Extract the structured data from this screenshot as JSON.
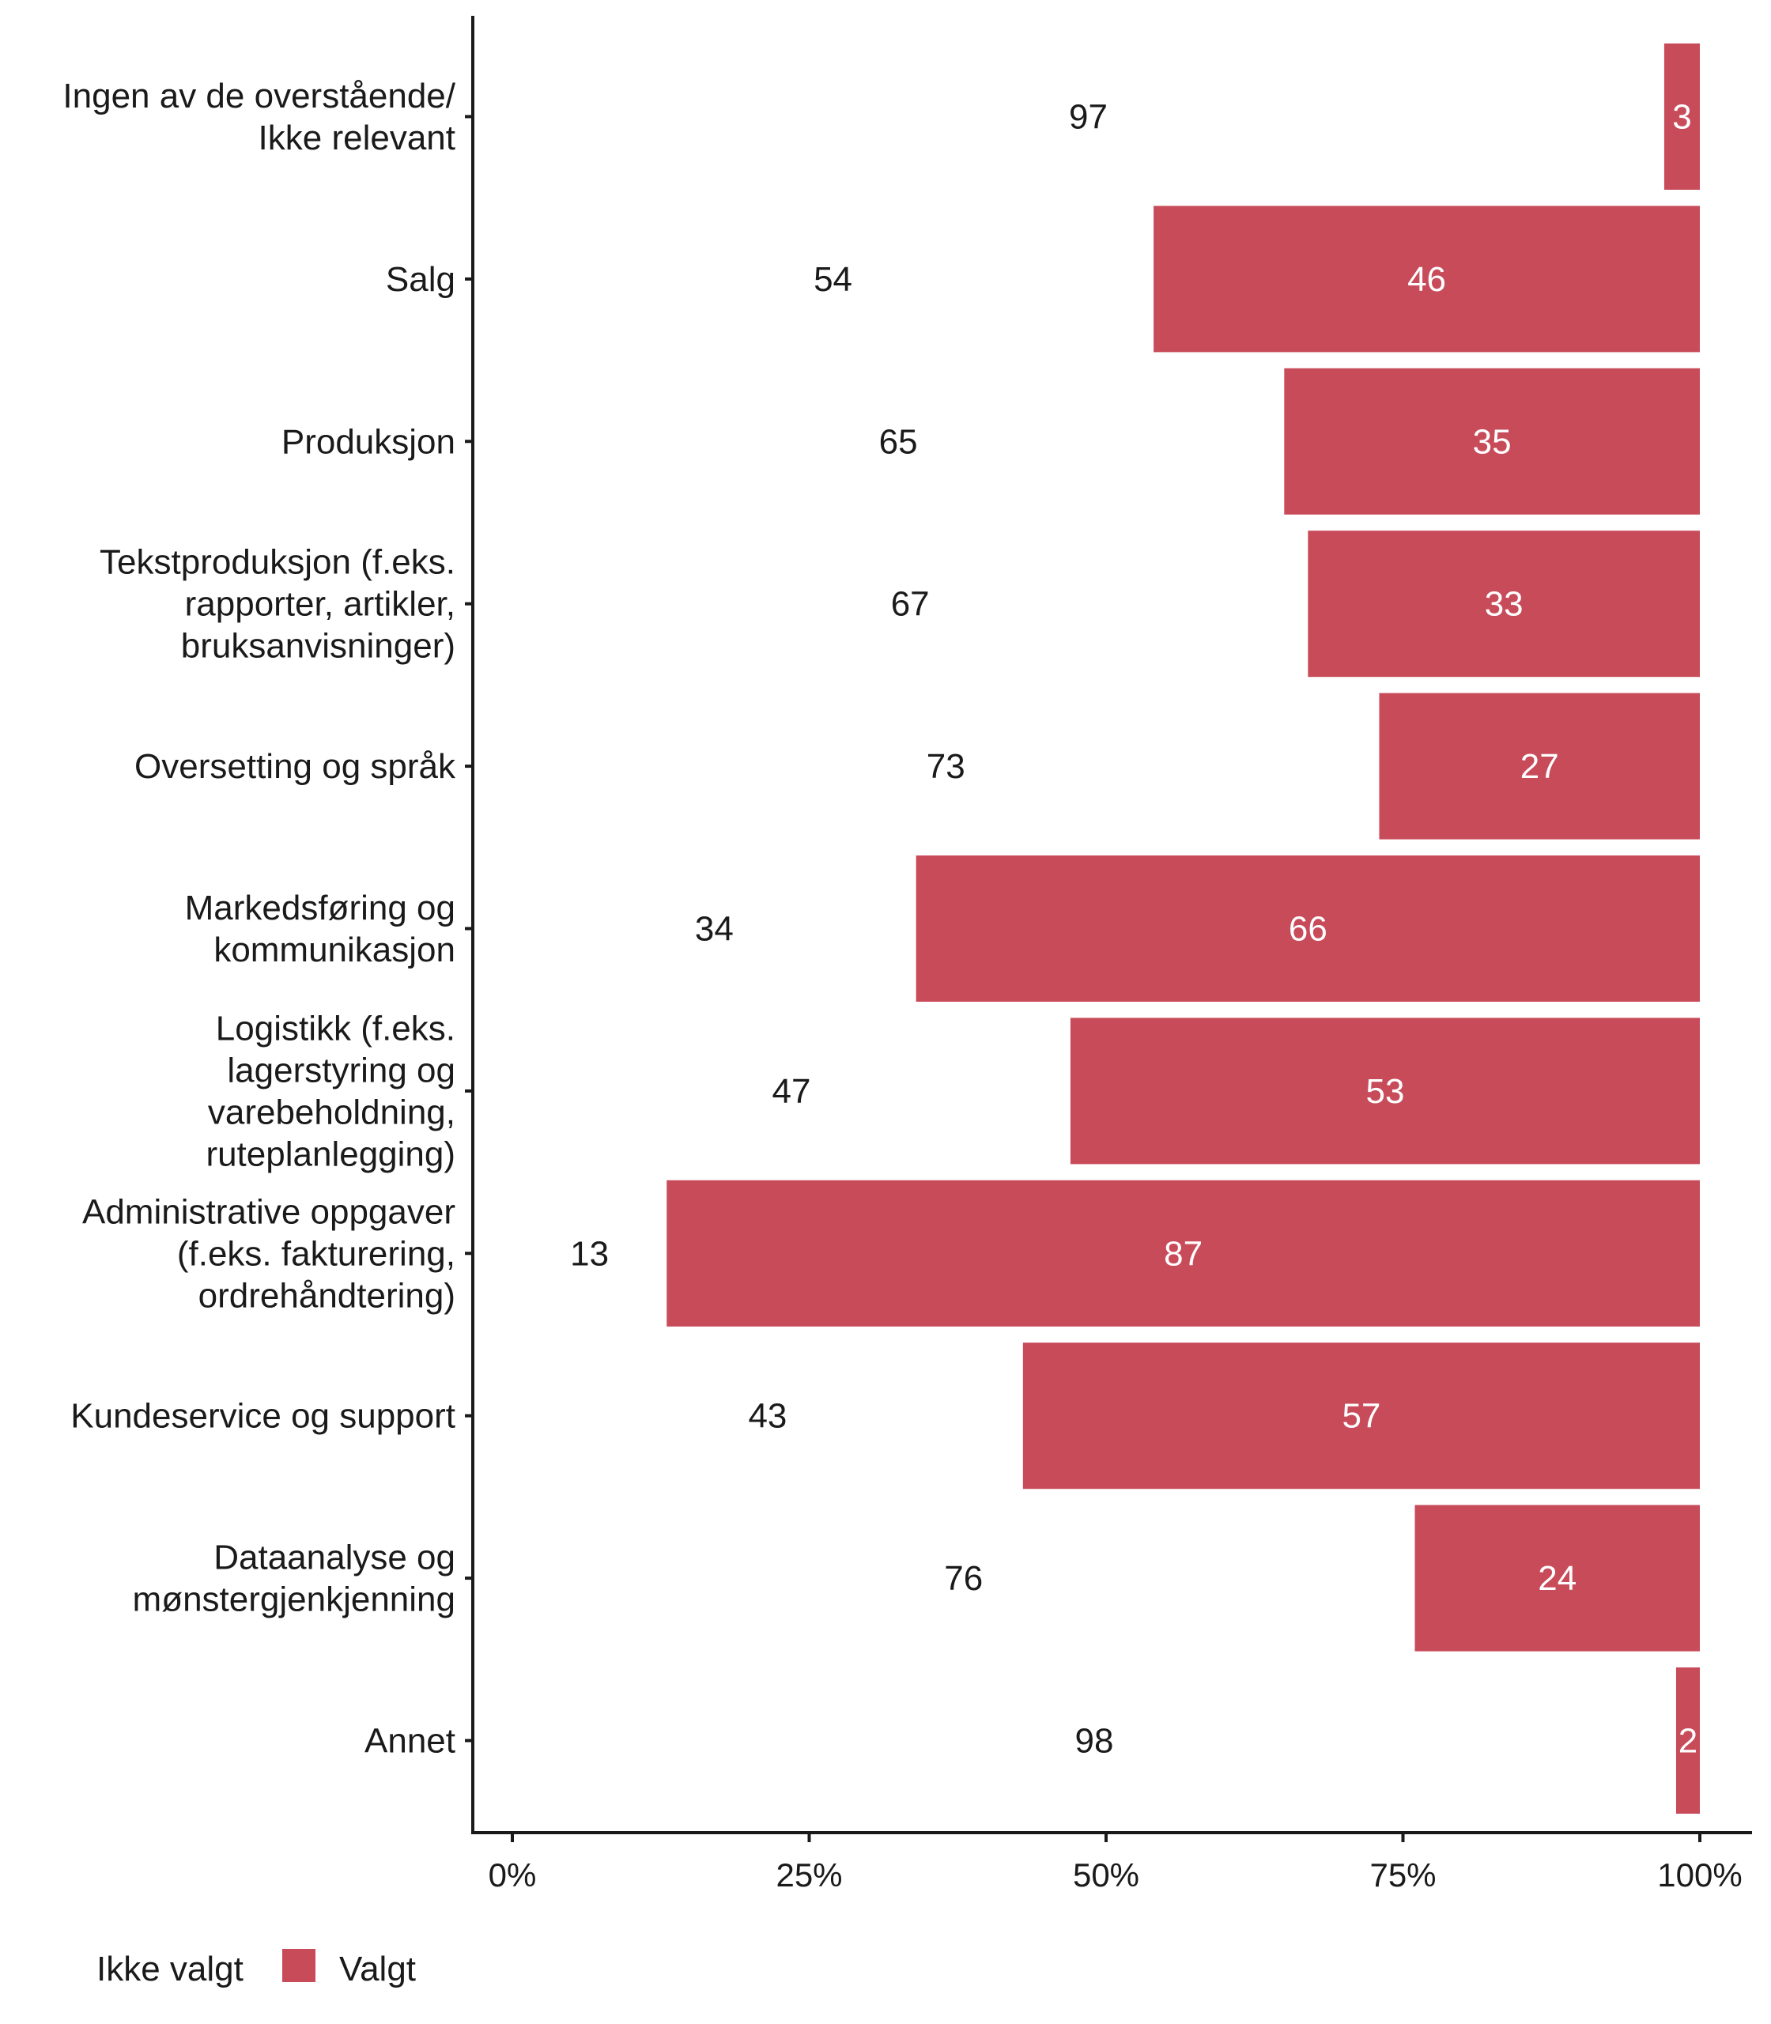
{
  "chart_data": {
    "type": "bar",
    "orientation": "horizontal",
    "stacked": true,
    "categories": [
      "Ingen av de overstående/ Ikke relevant",
      "Salg",
      "Produksjon",
      "Tekstproduksjon (f.eks. rapporter, artikler, bruksanvisninger)",
      "Oversetting og språk",
      "Markedsføring og kommunikasjon",
      "Logistikk (f.eks. lagerstyring og varebeholdning, ruteplanlegging)",
      "Administrative oppgaver (f.eks. fakturering, ordrehåndtering)",
      "Kundeservice og support",
      "Dataanalyse og mønstergjenkjenning",
      "Annet"
    ],
    "category_lines": [
      [
        "Ingen av de overstående/",
        "Ikke relevant"
      ],
      [
        "Salg"
      ],
      [
        "Produksjon"
      ],
      [
        "Tekstproduksjon (f.eks.",
        "rapporter, artikler,",
        "bruksanvisninger)"
      ],
      [
        "Oversetting og språk"
      ],
      [
        "Markedsføring og",
        "kommunikasjon"
      ],
      [
        "Logistikk (f.eks.",
        "lagerstyring og",
        "varebeholdning,",
        "ruteplanlegging)"
      ],
      [
        "Administrative oppgaver",
        "(f.eks. fakturering,",
        "ordrehåndtering)"
      ],
      [
        "Kundeservice og support"
      ],
      [
        "Dataanalyse og",
        "mønstergjenkjenning"
      ],
      [
        "Annet"
      ]
    ],
    "series": [
      {
        "name": "Ikke valgt",
        "values": [
          97,
          54,
          65,
          67,
          73,
          34,
          47,
          13,
          43,
          76,
          98
        ]
      },
      {
        "name": "Valgt",
        "values": [
          3,
          46,
          35,
          33,
          27,
          66,
          53,
          87,
          57,
          24,
          2
        ]
      }
    ],
    "xlim": [
      0,
      100
    ],
    "xticks": [
      "0%",
      "25%",
      "50%",
      "75%",
      "100%"
    ],
    "grid": false,
    "legend_position": "bottom-left",
    "colors": {
      "Ikke valgt": "#ffffff",
      "Valgt": "#c84b5a"
    }
  }
}
